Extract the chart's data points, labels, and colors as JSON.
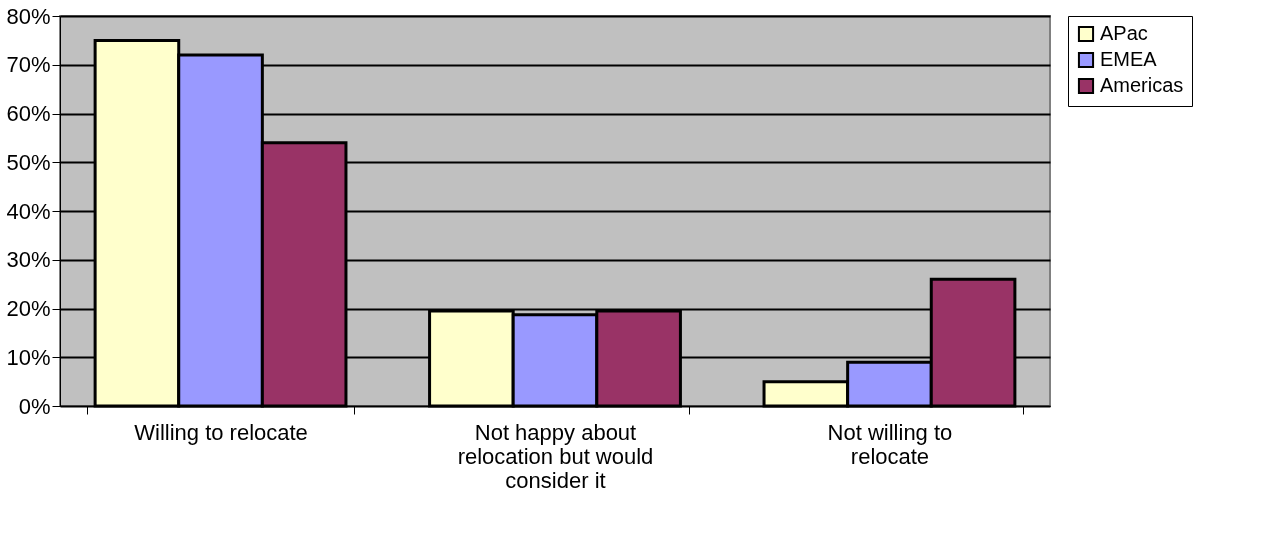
{
  "chart_data": {
    "type": "bar",
    "categories": [
      "Willing to relocate",
      "Not happy about relocation but would consider it",
      "Not willing to relocate"
    ],
    "series": [
      {
        "name": "APac",
        "color": "#ffffcc",
        "values": [
          75,
          19.5,
          5
        ]
      },
      {
        "name": "EMEA",
        "color": "#9999ff",
        "values": [
          72,
          18.7,
          9
        ]
      },
      {
        "name": "Americas",
        "color": "#993366",
        "values": [
          54,
          19.5,
          26
        ]
      }
    ],
    "ylim": [
      0,
      80
    ],
    "yticks": [
      {
        "value": 0,
        "label": "0%"
      },
      {
        "value": 10,
        "label": "10%"
      },
      {
        "value": 20,
        "label": "20%"
      },
      {
        "value": 30,
        "label": "30%"
      },
      {
        "value": 40,
        "label": "40%"
      },
      {
        "value": 50,
        "label": "50%"
      },
      {
        "value": 60,
        "label": "60%"
      },
      {
        "value": 70,
        "label": "70%"
      },
      {
        "value": 80,
        "label": "80%"
      }
    ],
    "grid": "y",
    "legend": "right"
  }
}
